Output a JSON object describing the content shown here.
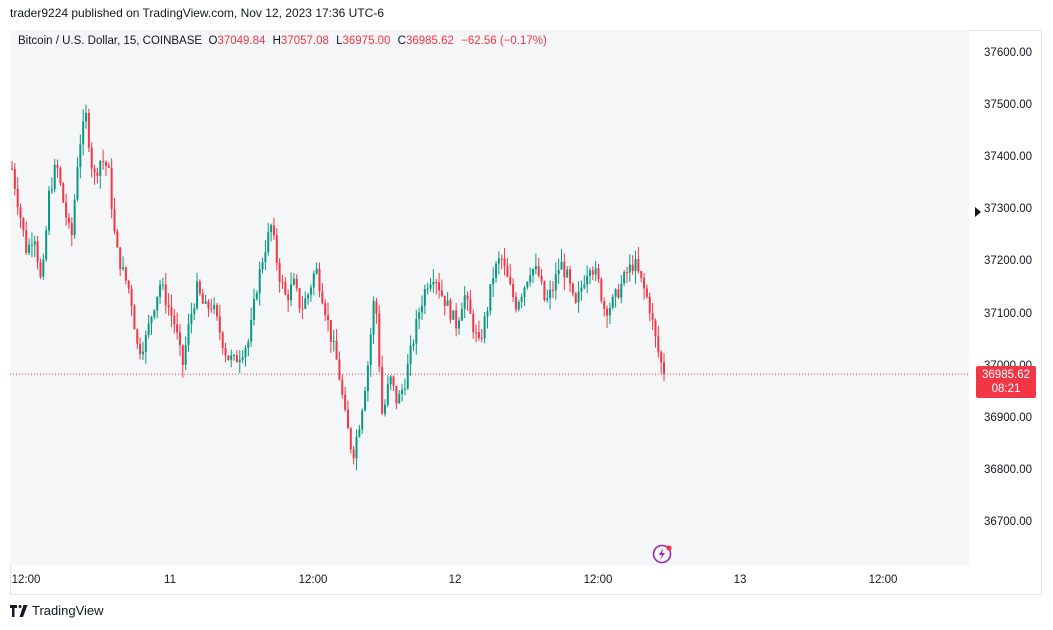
{
  "header": {
    "published": "trader9224 published on TradingView.com, Nov 12, 2023 17:36 UTC-6"
  },
  "legend": {
    "symbol": "Bitcoin / U.S. Dollar, 15, COINBASE",
    "o_label": "O",
    "o": "37049.84",
    "h_label": "H",
    "h": "37057.08",
    "l_label": "L",
    "l": "36975.00",
    "c_label": "C",
    "c": "36985.62",
    "change": "−62.56 (−0.17%)"
  },
  "price_tag": {
    "price": "36985.62",
    "countdown": "08:21"
  },
  "footer": {
    "brand": "TradingView"
  },
  "colors": {
    "up": "#089981",
    "down": "#f23645",
    "grid_bg": "#f5f6f8"
  },
  "icons": {
    "lightning": "lightning-icon",
    "logo": "tradingview-logo-icon",
    "arrow": "current-price-arrow-icon"
  },
  "chart_data": {
    "type": "candlestick",
    "interval": "15",
    "exchange": "COINBASE",
    "y_ticks": [
      "37600.00",
      "37500.00",
      "37400.00",
      "37300.00",
      "37200.00",
      "37100.00",
      "37000.00",
      "36900.00",
      "36800.00",
      "36700.00"
    ],
    "x_ticks": [
      "12:00",
      "11",
      "12:00",
      "12",
      "12:00",
      "13",
      "12:00"
    ],
    "ylim": [
      36640,
      37680
    ],
    "last_price": 36985.62,
    "close_path": [
      37380,
      37300,
      37220,
      37260,
      37150,
      37330,
      37390,
      37310,
      37240,
      37420,
      37480,
      37360,
      37400,
      37380,
      37230,
      37180,
      37140,
      37030,
      37050,
      37110,
      37160,
      37120,
      37080,
      37000,
      37090,
      37150,
      37110,
      37120,
      37070,
      37020,
      37010,
      37030,
      37050,
      37150,
      37220,
      37270,
      37180,
      37130,
      37160,
      37110,
      37140,
      37190,
      37130,
      37060,
      37000,
      36900,
      36830,
      36900,
      37000,
      37150,
      36900,
      36980,
      36930,
      36970,
      37040,
      37110,
      37160,
      37180,
      37140,
      37110,
      37080,
      37140,
      37090,
      37040,
      37100,
      37180,
      37210,
      37160,
      37120,
      37150,
      37190,
      37180,
      37120,
      37150,
      37200,
      37170,
      37110,
      37160,
      37200,
      37170,
      37110,
      37120,
      37150,
      37180,
      37200,
      37160,
      37120,
      37040,
      36985
    ]
  }
}
